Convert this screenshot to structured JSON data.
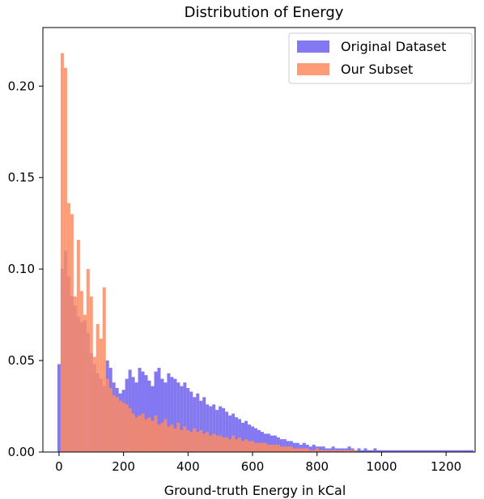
{
  "chart_data": {
    "type": "bar",
    "title": "Distribution of Energy",
    "xlabel": "Ground-truth Energy in kCal",
    "ylabel": "",
    "xlim": [
      -50,
      1290
    ],
    "ylim": [
      0,
      0.232
    ],
    "xticks": [
      0,
      200,
      400,
      600,
      800,
      1000,
      1200
    ],
    "yticks": [
      0.0,
      0.05,
      0.1,
      0.15,
      0.2
    ],
    "yticklabels": [
      "0.00",
      "0.05",
      "0.10",
      "0.15",
      "0.20"
    ],
    "legend_position": "top-right",
    "bin_width": 10,
    "series": [
      {
        "name": "Original Dataset",
        "color": "#6f5ff0",
        "opacity": 0.85,
        "x_start": -5,
        "values": [
          0.048,
          0.1,
          0.11,
          0.096,
          0.085,
          0.08,
          0.074,
          0.071,
          0.072,
          0.065,
          0.054,
          0.048,
          0.043,
          0.04,
          0.036,
          0.05,
          0.046,
          0.038,
          0.035,
          0.032,
          0.034,
          0.04,
          0.045,
          0.041,
          0.038,
          0.046,
          0.044,
          0.042,
          0.039,
          0.036,
          0.044,
          0.046,
          0.04,
          0.038,
          0.043,
          0.041,
          0.04,
          0.038,
          0.036,
          0.038,
          0.035,
          0.033,
          0.03,
          0.032,
          0.028,
          0.03,
          0.026,
          0.025,
          0.026,
          0.023,
          0.025,
          0.024,
          0.022,
          0.02,
          0.021,
          0.019,
          0.018,
          0.016,
          0.017,
          0.015,
          0.014,
          0.013,
          0.012,
          0.011,
          0.01,
          0.01,
          0.009,
          0.009,
          0.008,
          0.007,
          0.007,
          0.006,
          0.006,
          0.005,
          0.005,
          0.004,
          0.005,
          0.004,
          0.003,
          0.004,
          0.003,
          0.003,
          0.003,
          0.002,
          0.002,
          0.003,
          0.002,
          0.002,
          0.002,
          0.002,
          0.003,
          0.002,
          0.001,
          0.002,
          0.001,
          0.002,
          0.001,
          0.001,
          0.002,
          0.001,
          0.001,
          0.001,
          0.001,
          0.001,
          0.001,
          0.001,
          0.001,
          0.001,
          0.001,
          0.001,
          0.001,
          0.001,
          0.001,
          0.001,
          0.001,
          0.001,
          0.001,
          0.001,
          0.001,
          0.001,
          0.001,
          0.001,
          0.001,
          0.001,
          0.001,
          0.001,
          0.001,
          0.001,
          0.001
        ]
      },
      {
        "name": "Our Subset",
        "color": "#ff8a5f",
        "opacity": 0.85,
        "x_start": 5,
        "values": [
          0.218,
          0.21,
          0.136,
          0.13,
          0.085,
          0.116,
          0.088,
          0.075,
          0.1,
          0.085,
          0.052,
          0.07,
          0.062,
          0.09,
          0.04,
          0.035,
          0.031,
          0.03,
          0.028,
          0.027,
          0.026,
          0.024,
          0.021,
          0.019,
          0.02,
          0.021,
          0.018,
          0.019,
          0.017,
          0.02,
          0.015,
          0.016,
          0.018,
          0.014,
          0.015,
          0.013,
          0.016,
          0.012,
          0.014,
          0.012,
          0.011,
          0.013,
          0.011,
          0.012,
          0.01,
          0.011,
          0.009,
          0.01,
          0.009,
          0.009,
          0.008,
          0.008,
          0.007,
          0.009,
          0.007,
          0.008,
          0.006,
          0.007,
          0.006,
          0.006,
          0.005,
          0.005,
          0.005,
          0.005,
          0.004,
          0.004,
          0.004,
          0.004,
          0.003,
          0.003,
          0.003,
          0.003,
          0.002,
          0.002,
          0.002,
          0.002,
          0.002,
          0.001,
          0.001,
          0.002,
          0.001,
          0.001,
          0.001,
          0.001,
          0.001,
          0.001,
          0.001,
          0.001,
          0.001,
          0.001,
          0.001,
          0.001
        ]
      }
    ]
  }
}
